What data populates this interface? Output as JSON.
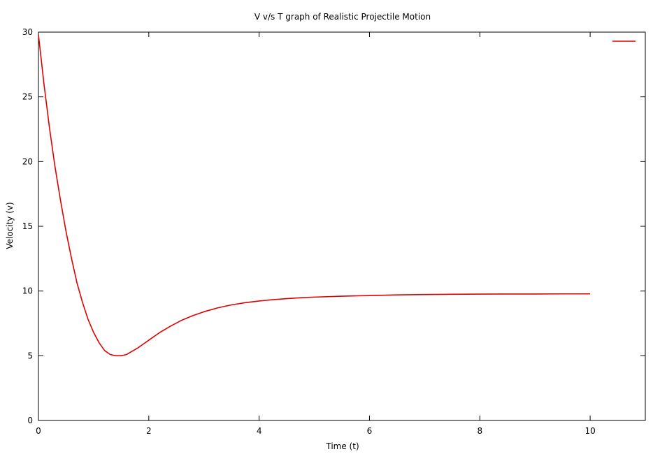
{
  "chart_data": {
    "type": "line",
    "title": "V v/s T graph of Realistic Projectile Motion",
    "xlabel": "Time (t)",
    "ylabel": "Velocity (v)",
    "xlim": [
      0,
      11
    ],
    "ylim": [
      0,
      30
    ],
    "x_ticks": [
      "0",
      "2",
      "4",
      "6",
      "8",
      "10"
    ],
    "y_ticks": [
      "0",
      "5",
      "10",
      "15",
      "20",
      "25",
      "30"
    ],
    "grid": false,
    "legend": {
      "position": "top-right",
      "entries": [
        ""
      ]
    },
    "series": [
      {
        "name": "",
        "color": "#e00000",
        "x": [
          0,
          0.1,
          0.2,
          0.3,
          0.4,
          0.5,
          0.6,
          0.7,
          0.8,
          0.9,
          1.0,
          1.1,
          1.2,
          1.3,
          1.4,
          1.5,
          1.6,
          1.7,
          1.8,
          1.9,
          2.0,
          2.2,
          2.4,
          2.6,
          2.8,
          3.0,
          3.25,
          3.5,
          3.75,
          4.0,
          4.25,
          4.5,
          4.75,
          5.0,
          5.5,
          6.0,
          6.5,
          7.0,
          7.5,
          8.0,
          8.5,
          9.0,
          9.5,
          10.0
        ],
        "y": [
          29.8,
          26.0,
          22.6,
          19.6,
          17.0,
          14.6,
          12.5,
          10.6,
          9.1,
          7.8,
          6.8,
          6.0,
          5.4,
          5.1,
          5.0,
          5.0,
          5.1,
          5.35,
          5.6,
          5.9,
          6.2,
          6.8,
          7.3,
          7.75,
          8.1,
          8.4,
          8.7,
          8.93,
          9.1,
          9.23,
          9.33,
          9.41,
          9.48,
          9.53,
          9.6,
          9.65,
          9.7,
          9.73,
          9.75,
          9.76,
          9.77,
          9.77,
          9.78,
          9.78
        ]
      }
    ]
  }
}
